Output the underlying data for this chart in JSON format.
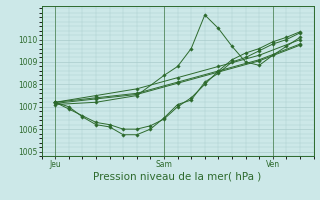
{
  "title": "",
  "xlabel": "Pression niveau de la mer( hPa )",
  "bg_color": "#cce8e8",
  "grid_color": "#aacccc",
  "line_color": "#2d6a2d",
  "ylim": [
    1004.8,
    1011.5
  ],
  "yticks": [
    1005,
    1006,
    1007,
    1008,
    1009,
    1010
  ],
  "xtick_labels": [
    "Jeu",
    "Sam",
    "Ven"
  ],
  "xtick_positions": [
    0,
    48,
    96
  ],
  "xlim": [
    -6,
    114
  ],
  "series": [
    {
      "x": [
        0,
        6,
        12,
        18,
        24,
        30,
        36,
        42,
        48,
        54,
        60,
        66,
        72,
        78,
        84,
        90,
        96,
        102,
        108
      ],
      "y": [
        1007.2,
        1007.0,
        1006.55,
        1006.2,
        1006.1,
        1005.75,
        1005.75,
        1006.0,
        1006.5,
        1007.1,
        1007.3,
        1008.1,
        1008.5,
        1009.0,
        1009.2,
        1009.5,
        1009.8,
        1010.0,
        1010.3
      ]
    },
    {
      "x": [
        0,
        18,
        36,
        54,
        72,
        90,
        108
      ],
      "y": [
        1007.2,
        1007.5,
        1007.8,
        1008.3,
        1008.8,
        1009.3,
        1010.0
      ]
    },
    {
      "x": [
        0,
        18,
        36,
        54,
        72,
        90,
        108
      ],
      "y": [
        1007.2,
        1007.4,
        1007.6,
        1008.1,
        1008.6,
        1009.1,
        1009.8
      ]
    },
    {
      "x": [
        0,
        18,
        36,
        54,
        72,
        90,
        108
      ],
      "y": [
        1007.15,
        1007.35,
        1007.55,
        1008.05,
        1008.55,
        1009.05,
        1009.75
      ]
    },
    {
      "x": [
        0,
        18,
        36,
        48,
        54,
        60,
        66,
        72,
        78,
        84,
        90,
        96,
        102,
        108
      ],
      "y": [
        1007.1,
        1007.2,
        1007.5,
        1008.4,
        1008.8,
        1009.6,
        1011.1,
        1010.5,
        1009.7,
        1009.0,
        1008.85,
        1009.3,
        1009.7,
        1010.1
      ]
    },
    {
      "x": [
        0,
        6,
        12,
        18,
        24,
        30,
        36,
        42,
        48,
        54,
        60,
        66,
        72,
        78,
        84,
        90,
        96,
        102,
        108
      ],
      "y": [
        1007.2,
        1006.9,
        1006.6,
        1006.3,
        1006.2,
        1006.0,
        1006.0,
        1006.15,
        1006.45,
        1007.0,
        1007.4,
        1008.0,
        1008.6,
        1009.1,
        1009.4,
        1009.6,
        1009.9,
        1010.1,
        1010.35
      ]
    }
  ],
  "ylabel_fontsize": 5.5,
  "xlabel_fontsize": 7.5,
  "tick_fontsize": 5.5
}
